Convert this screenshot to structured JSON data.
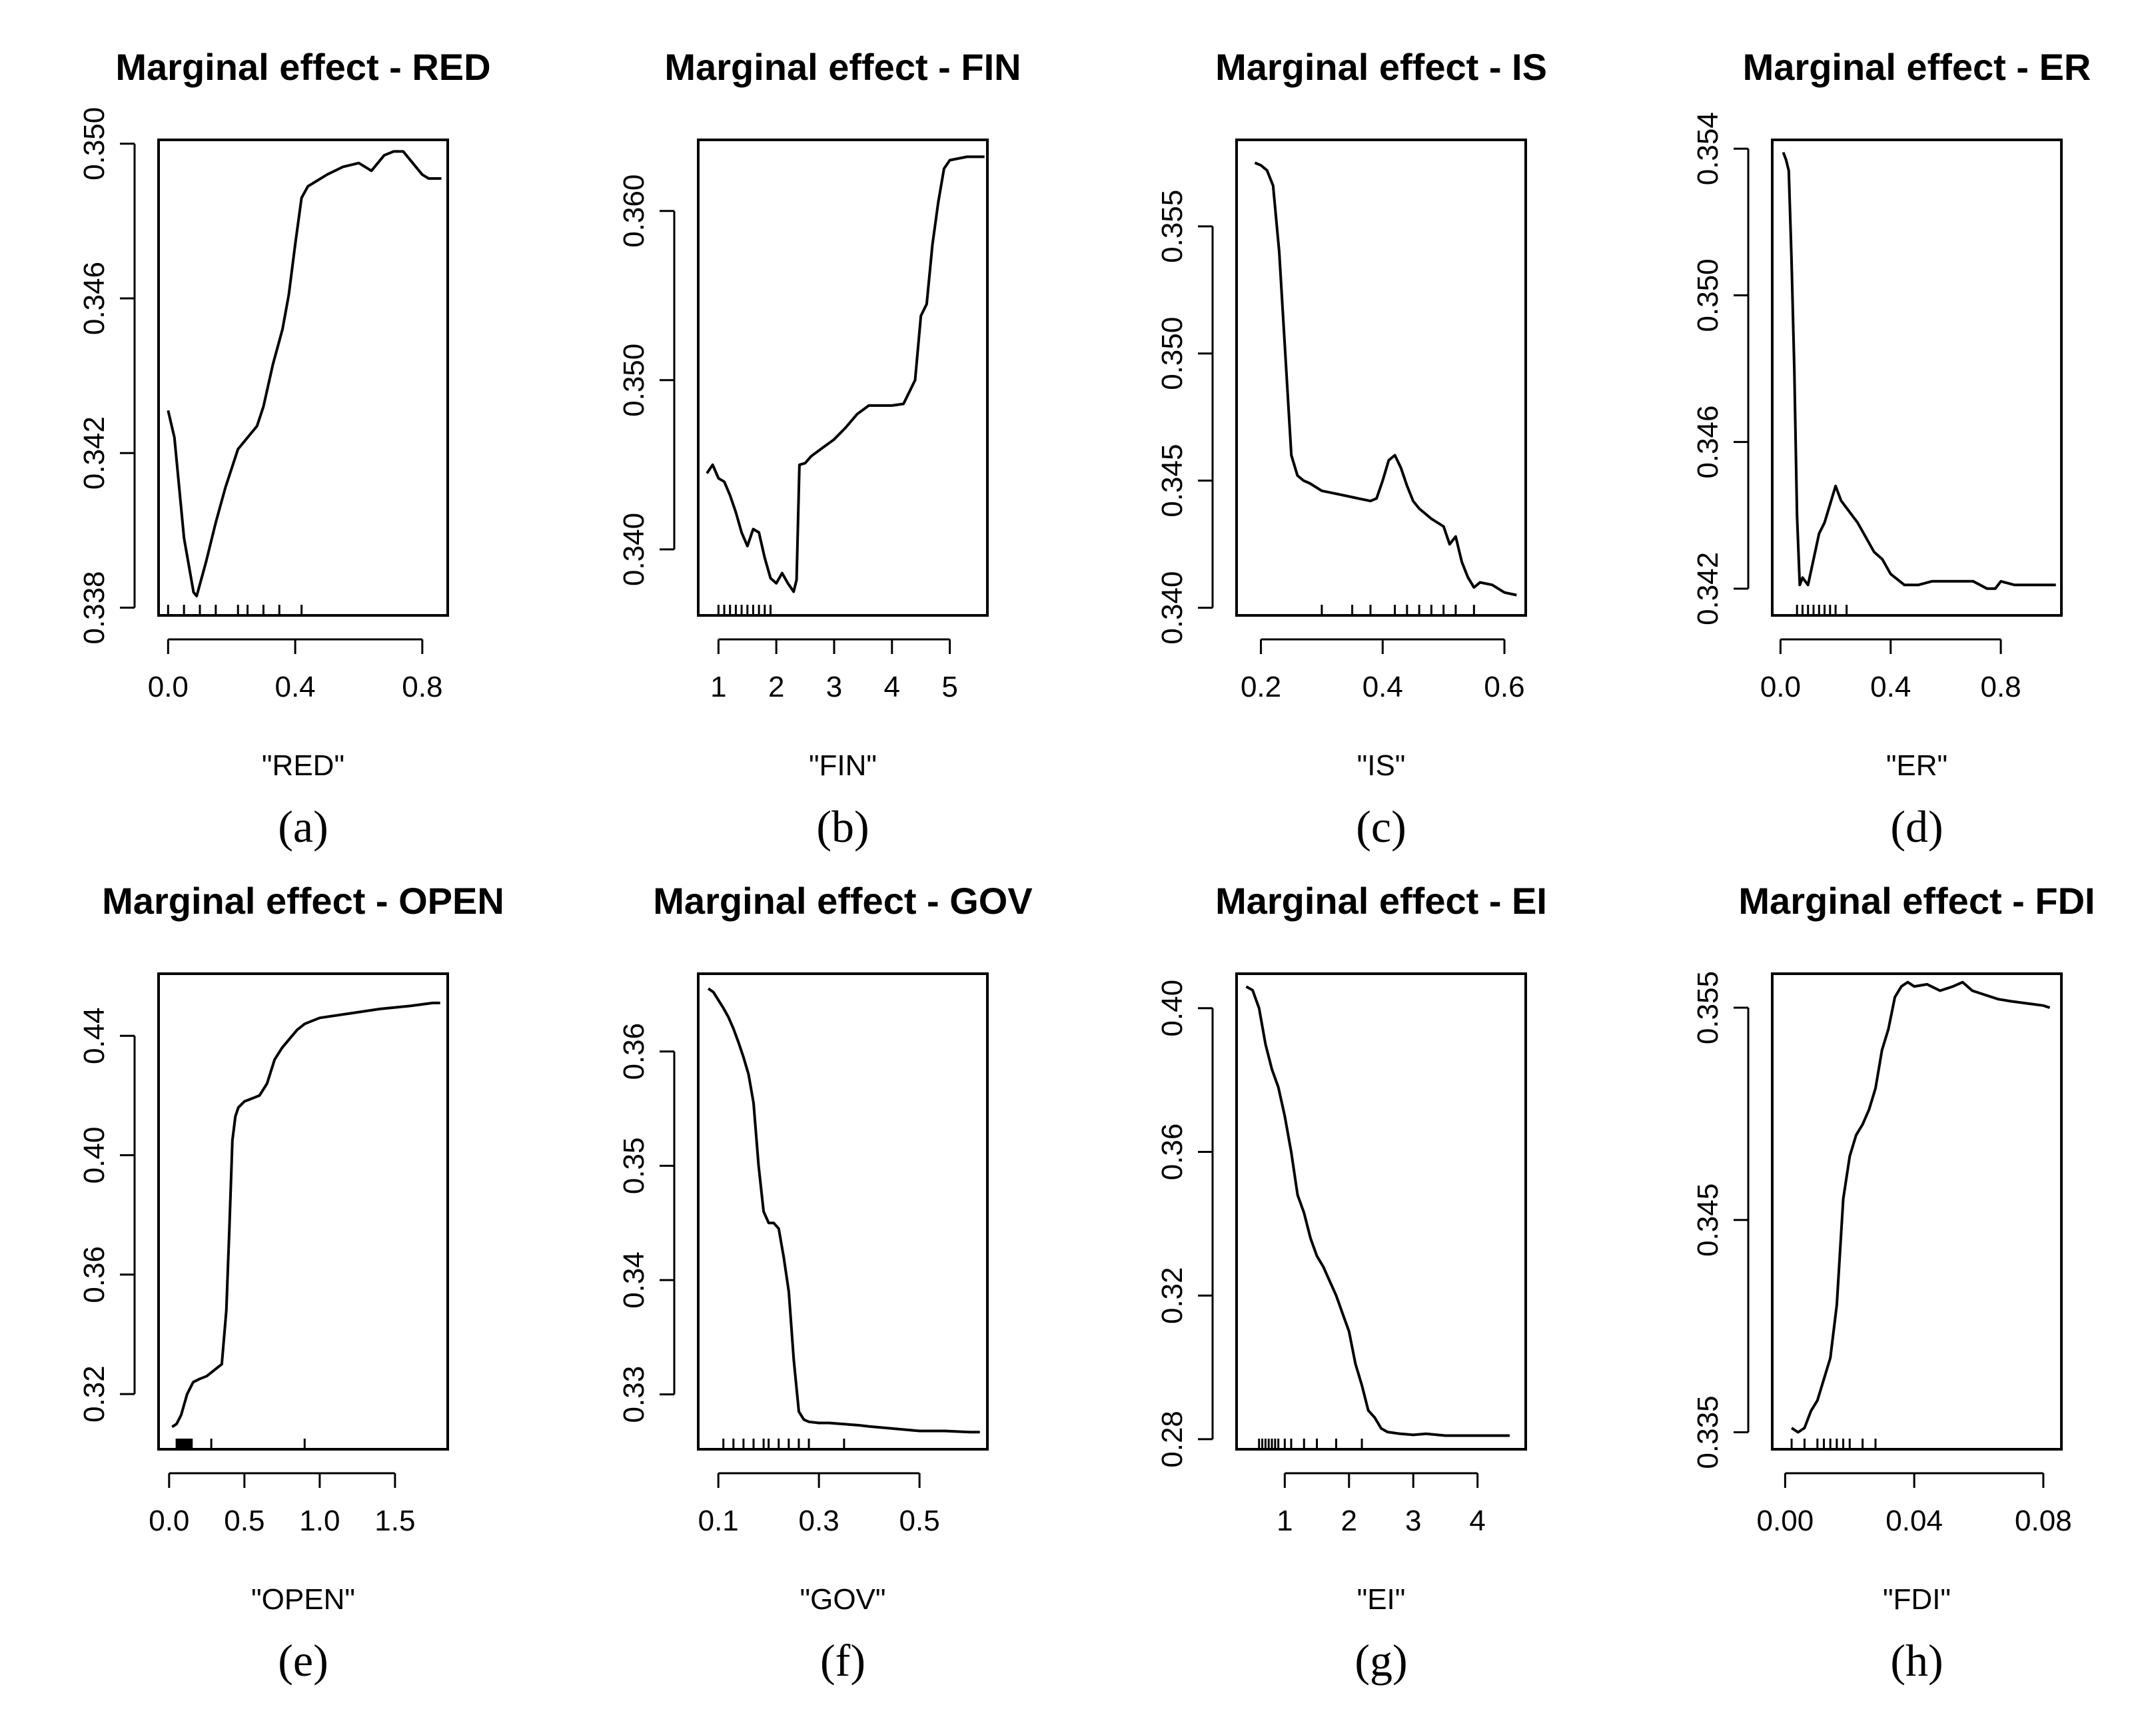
{
  "chart_data": [
    {
      "type": "line",
      "caption": "(a)",
      "title": "Marginal effect - RED",
      "xlabel": "\"RED\"",
      "ylabel": "",
      "xlim": [
        -0.03,
        0.88
      ],
      "ylim": [
        0.3378,
        0.3501
      ],
      "xticks": [
        0.0,
        0.4,
        0.8
      ],
      "xtick_labels": [
        "0.0",
        "0.4",
        "0.8"
      ],
      "yticks": [
        0.338,
        0.342,
        0.346,
        0.35
      ],
      "ytick_labels": [
        "0.338",
        "0.342",
        "0.346",
        "0.350"
      ],
      "rug": [
        0.0,
        0.05,
        0.1,
        0.15,
        0.22,
        0.25,
        0.3,
        0.35,
        0.42
      ],
      "x": [
        0.0,
        0.02,
        0.05,
        0.08,
        0.09,
        0.12,
        0.15,
        0.18,
        0.22,
        0.25,
        0.28,
        0.3,
        0.33,
        0.36,
        0.38,
        0.4,
        0.42,
        0.44,
        0.46,
        0.5,
        0.55,
        0.6,
        0.64,
        0.68,
        0.71,
        0.74,
        0.77,
        0.8,
        0.82,
        0.86
      ],
      "y": [
        0.3431,
        0.3424,
        0.3398,
        0.3384,
        0.3383,
        0.3392,
        0.3402,
        0.3411,
        0.3421,
        0.3424,
        0.3427,
        0.3432,
        0.3443,
        0.3452,
        0.3461,
        0.3474,
        0.3486,
        0.3489,
        0.349,
        0.3492,
        0.3494,
        0.3495,
        0.3493,
        0.3497,
        0.3498,
        0.3498,
        0.3495,
        0.3492,
        0.3491,
        0.3491
      ]
    },
    {
      "type": "line",
      "caption": "(b)",
      "title": "Marginal effect - FIN",
      "xlabel": "\"FIN\"",
      "ylabel": "",
      "xlim": [
        0.65,
        5.65
      ],
      "ylim": [
        0.3361,
        0.3642
      ],
      "xticks": [
        1,
        2,
        3,
        4,
        5
      ],
      "xtick_labels": [
        "1",
        "2",
        "3",
        "4",
        "5"
      ],
      "yticks": [
        0.34,
        0.35,
        0.36
      ],
      "ytick_labels": [
        "0.340",
        "0.350",
        "0.360"
      ],
      "rug": [
        1.0,
        1.1,
        1.2,
        1.3,
        1.4,
        1.5,
        1.6,
        1.7,
        1.8,
        1.9
      ],
      "x": [
        0.8,
        0.9,
        1.0,
        1.1,
        1.2,
        1.3,
        1.4,
        1.5,
        1.6,
        1.7,
        1.8,
        1.9,
        2.0,
        2.1,
        2.2,
        2.3,
        2.35,
        2.4,
        2.5,
        2.6,
        2.8,
        3.0,
        3.2,
        3.4,
        3.6,
        3.8,
        4.0,
        4.2,
        4.4,
        4.5,
        4.6,
        4.7,
        4.8,
        4.9,
        5.0,
        5.3,
        5.6
      ],
      "y": [
        0.3445,
        0.345,
        0.3442,
        0.344,
        0.3432,
        0.3422,
        0.341,
        0.3402,
        0.3412,
        0.341,
        0.3395,
        0.3383,
        0.338,
        0.3386,
        0.338,
        0.3375,
        0.3382,
        0.345,
        0.3451,
        0.3455,
        0.346,
        0.3465,
        0.3472,
        0.348,
        0.3485,
        0.3485,
        0.3485,
        0.3486,
        0.35,
        0.3538,
        0.3545,
        0.358,
        0.3605,
        0.3625,
        0.363,
        0.3632,
        0.3632
      ]
    },
    {
      "type": "line",
      "caption": "(c)",
      "title": "Marginal effect - IS",
      "xlabel": "\"IS\"",
      "ylabel": "",
      "xlim": [
        0.16,
        0.635
      ],
      "ylim": [
        0.3397,
        0.3584
      ],
      "xticks": [
        0.2,
        0.4,
        0.6
      ],
      "xtick_labels": [
        "0.2",
        "0.4",
        "0.6"
      ],
      "yticks": [
        0.34,
        0.345,
        0.35,
        0.355
      ],
      "ytick_labels": [
        "0.340",
        "0.345",
        "0.350",
        "0.355"
      ],
      "rug": [
        0.3,
        0.35,
        0.38,
        0.42,
        0.44,
        0.46,
        0.48,
        0.5,
        0.52,
        0.55
      ],
      "x": [
        0.19,
        0.2,
        0.21,
        0.22,
        0.23,
        0.24,
        0.25,
        0.26,
        0.27,
        0.28,
        0.3,
        0.32,
        0.34,
        0.36,
        0.38,
        0.39,
        0.4,
        0.41,
        0.42,
        0.43,
        0.44,
        0.45,
        0.46,
        0.48,
        0.5,
        0.51,
        0.52,
        0.53,
        0.54,
        0.55,
        0.56,
        0.58,
        0.6,
        0.62
      ],
      "y": [
        0.3575,
        0.3574,
        0.3572,
        0.3566,
        0.354,
        0.35,
        0.346,
        0.3452,
        0.345,
        0.3449,
        0.3446,
        0.3445,
        0.3444,
        0.3443,
        0.3442,
        0.3443,
        0.345,
        0.3458,
        0.346,
        0.3455,
        0.3448,
        0.3442,
        0.3439,
        0.3435,
        0.3432,
        0.3425,
        0.3428,
        0.3418,
        0.3412,
        0.3408,
        0.341,
        0.3409,
        0.3406,
        0.3405
      ]
    },
    {
      "type": "line",
      "caption": "(d)",
      "title": "Marginal effect - ER",
      "xlabel": "\"ER\"",
      "ylabel": "",
      "xlim": [
        -0.03,
        1.02
      ],
      "ylim": [
        0.34127,
        0.35424
      ],
      "xticks": [
        0.0,
        0.4,
        0.8
      ],
      "xtick_labels": [
        "0.0",
        "0.4",
        "0.8"
      ],
      "yticks": [
        0.342,
        0.346,
        0.35,
        0.354
      ],
      "ytick_labels": [
        "0.342",
        "0.346",
        "0.350",
        "0.354"
      ],
      "rug": [
        0.06,
        0.08,
        0.1,
        0.12,
        0.14,
        0.16,
        0.18,
        0.2,
        0.24
      ],
      "x": [
        0.01,
        0.02,
        0.03,
        0.04,
        0.05,
        0.06,
        0.07,
        0.08,
        0.1,
        0.12,
        0.14,
        0.16,
        0.18,
        0.2,
        0.21,
        0.22,
        0.25,
        0.28,
        0.31,
        0.34,
        0.37,
        0.4,
        0.45,
        0.5,
        0.55,
        0.6,
        0.65,
        0.7,
        0.75,
        0.78,
        0.8,
        0.85,
        0.9,
        0.95,
        1.0
      ],
      "y": [
        0.3539,
        0.3537,
        0.3534,
        0.351,
        0.348,
        0.344,
        0.3421,
        0.3423,
        0.3421,
        0.3428,
        0.3435,
        0.3438,
        0.3443,
        0.3448,
        0.3446,
        0.3444,
        0.3441,
        0.3438,
        0.3434,
        0.343,
        0.3428,
        0.3424,
        0.3421,
        0.3421,
        0.3422,
        0.3422,
        0.3422,
        0.3422,
        0.342,
        0.342,
        0.3422,
        0.3421,
        0.3421,
        0.3421,
        0.3421
      ]
    },
    {
      "type": "line",
      "caption": "(e)",
      "title": "Marginal effect - OPEN",
      "xlabel": "\"OPEN\"",
      "ylabel": "",
      "xlim": [
        -0.07,
        1.85
      ],
      "ylim": [
        0.3015,
        0.4608
      ],
      "xticks": [
        0.0,
        0.5,
        1.0,
        1.5
      ],
      "xtick_labels": [
        "0.0",
        "0.5",
        "1.0",
        "1.5"
      ],
      "yticks": [
        0.32,
        0.36,
        0.4,
        0.44
      ],
      "ytick_labels": [
        "0.32",
        "0.36",
        "0.40",
        "0.44"
      ],
      "rug": [
        0.05,
        0.06,
        0.07,
        0.08,
        0.09,
        0.1,
        0.11,
        0.12,
        0.13,
        0.14,
        0.15,
        0.28,
        0.9
      ],
      "x": [
        0.02,
        0.05,
        0.08,
        0.12,
        0.16,
        0.2,
        0.25,
        0.3,
        0.35,
        0.38,
        0.4,
        0.42,
        0.44,
        0.46,
        0.5,
        0.55,
        0.6,
        0.65,
        0.7,
        0.75,
        0.8,
        0.85,
        0.9,
        0.95,
        1.0,
        1.2,
        1.4,
        1.6,
        1.75,
        1.8
      ],
      "y": [
        0.309,
        0.31,
        0.313,
        0.32,
        0.324,
        0.325,
        0.326,
        0.328,
        0.33,
        0.348,
        0.375,
        0.405,
        0.413,
        0.416,
        0.418,
        0.419,
        0.42,
        0.424,
        0.432,
        0.436,
        0.439,
        0.442,
        0.444,
        0.445,
        0.446,
        0.4475,
        0.449,
        0.45,
        0.451,
        0.451
      ]
    },
    {
      "type": "line",
      "caption": "(f)",
      "title": "Marginal effect - GOV",
      "xlabel": "\"GOV\"",
      "ylabel": "",
      "xlim": [
        0.06,
        0.635
      ],
      "ylim": [
        0.3252,
        0.3668
      ],
      "xticks": [
        0.1,
        0.3,
        0.5
      ],
      "xtick_labels": [
        "0.1",
        "0.3",
        "0.5"
      ],
      "yticks": [
        0.33,
        0.34,
        0.35,
        0.36
      ],
      "ytick_labels": [
        "0.33",
        "0.34",
        "0.35",
        "0.36"
      ],
      "rug": [
        0.11,
        0.13,
        0.15,
        0.17,
        0.19,
        0.2,
        0.22,
        0.24,
        0.26,
        0.28,
        0.35
      ],
      "x": [
        0.08,
        0.09,
        0.1,
        0.11,
        0.12,
        0.13,
        0.14,
        0.15,
        0.16,
        0.17,
        0.18,
        0.19,
        0.2,
        0.21,
        0.22,
        0.23,
        0.24,
        0.25,
        0.26,
        0.27,
        0.28,
        0.3,
        0.32,
        0.35,
        0.38,
        0.4,
        0.45,
        0.5,
        0.55,
        0.6,
        0.62
      ],
      "y": [
        0.3655,
        0.3652,
        0.3645,
        0.3638,
        0.363,
        0.362,
        0.3608,
        0.3595,
        0.358,
        0.3555,
        0.35,
        0.346,
        0.345,
        0.345,
        0.3445,
        0.342,
        0.339,
        0.333,
        0.3285,
        0.3278,
        0.3276,
        0.3275,
        0.3275,
        0.3274,
        0.3273,
        0.3272,
        0.327,
        0.3268,
        0.3268,
        0.3267,
        0.3267
      ]
    },
    {
      "type": "line",
      "caption": "(g)",
      "title": "Marginal effect - EI",
      "xlabel": "\"EI\"",
      "ylabel": "",
      "xlim": [
        0.25,
        4.75
      ],
      "ylim": [
        0.2772,
        0.4096
      ],
      "xticks": [
        1,
        2,
        3,
        4
      ],
      "xtick_labels": [
        "1",
        "2",
        "3",
        "4"
      ],
      "yticks": [
        0.28,
        0.32,
        0.36,
        0.4
      ],
      "ytick_labels": [
        "0.28",
        "0.32",
        "0.36",
        "0.40"
      ],
      "rug": [
        0.6,
        0.65,
        0.7,
        0.75,
        0.8,
        0.85,
        0.9,
        1.0,
        1.1,
        1.3,
        1.5,
        1.8,
        2.2
      ],
      "x": [
        0.4,
        0.5,
        0.6,
        0.7,
        0.8,
        0.9,
        1.0,
        1.1,
        1.2,
        1.3,
        1.4,
        1.5,
        1.6,
        1.7,
        1.8,
        1.9,
        2.0,
        2.1,
        2.2,
        2.3,
        2.4,
        2.5,
        2.6,
        2.8,
        3.0,
        3.2,
        3.5,
        4.0,
        4.5
      ],
      "y": [
        0.406,
        0.405,
        0.4,
        0.39,
        0.383,
        0.378,
        0.37,
        0.36,
        0.348,
        0.343,
        0.336,
        0.331,
        0.328,
        0.324,
        0.32,
        0.315,
        0.31,
        0.301,
        0.295,
        0.288,
        0.286,
        0.283,
        0.282,
        0.2815,
        0.2812,
        0.2815,
        0.281,
        0.281,
        0.281
      ]
    },
    {
      "type": "line",
      "caption": "(h)",
      "title": "Marginal effect - FDI",
      "xlabel": "\"FDI\"",
      "ylabel": "",
      "xlim": [
        -0.004,
        0.0856
      ],
      "ylim": [
        0.3342,
        0.3566
      ],
      "xticks": [
        0.0,
        0.04,
        0.08
      ],
      "xtick_labels": [
        "0.00",
        "0.04",
        "0.08"
      ],
      "yticks": [
        0.335,
        0.345,
        0.355
      ],
      "ytick_labels": [
        "0.335",
        "0.345",
        "0.355"
      ],
      "rug": [
        0.002,
        0.006,
        0.01,
        0.012,
        0.014,
        0.016,
        0.018,
        0.02,
        0.024,
        0.028
      ],
      "x": [
        0.002,
        0.004,
        0.006,
        0.008,
        0.01,
        0.012,
        0.014,
        0.016,
        0.018,
        0.02,
        0.022,
        0.024,
        0.026,
        0.028,
        0.03,
        0.032,
        0.034,
        0.036,
        0.038,
        0.04,
        0.044,
        0.048,
        0.052,
        0.055,
        0.058,
        0.062,
        0.066,
        0.07,
        0.075,
        0.08,
        0.082
      ],
      "y": [
        0.3352,
        0.335,
        0.3352,
        0.336,
        0.3365,
        0.3375,
        0.3385,
        0.341,
        0.346,
        0.348,
        0.349,
        0.3495,
        0.3502,
        0.3512,
        0.353,
        0.354,
        0.3555,
        0.356,
        0.3562,
        0.356,
        0.3561,
        0.3558,
        0.356,
        0.3562,
        0.3558,
        0.3556,
        0.3554,
        0.3553,
        0.3552,
        0.3551,
        0.355
      ]
    }
  ]
}
